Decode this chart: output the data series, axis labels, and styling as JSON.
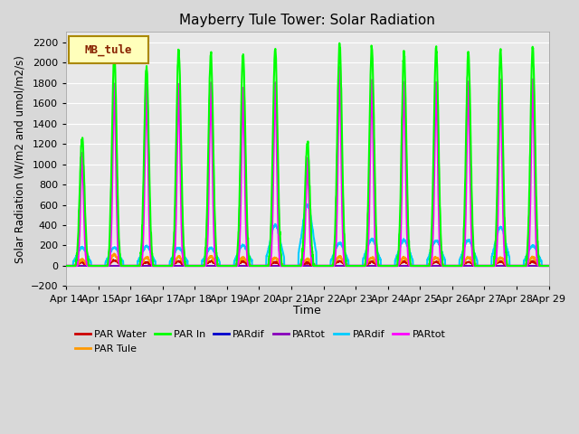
{
  "title": "Mayberry Tule Tower: Solar Radiation",
  "ylabel": "Solar Radiation (W/m2 and umol/m2/s)",
  "xlabel": "Time",
  "ylim": [
    -200,
    2300
  ],
  "yticks": [
    -200,
    0,
    200,
    400,
    600,
    800,
    1000,
    1200,
    1400,
    1600,
    1800,
    2000,
    2200
  ],
  "bg_color": "#d8d8d8",
  "plot_bg": "#e8e8e8",
  "legend_label": "MB_tule",
  "series": {
    "PAR Water": {
      "color": "#cc0000",
      "lw": 1.2
    },
    "PAR Tule": {
      "color": "#ff9900",
      "lw": 1.5
    },
    "PAR In": {
      "color": "#00ff00",
      "lw": 1.5
    },
    "PARdif_blue": {
      "color": "#0000cc",
      "lw": 1.2
    },
    "PARtot_purple": {
      "color": "#8800bb",
      "lw": 1.2
    },
    "PARdif_cyan": {
      "color": "#00ccff",
      "lw": 1.5
    },
    "PARtot_magenta": {
      "color": "#ff00ff",
      "lw": 1.8
    }
  },
  "x_tick_labels": [
    "Apr 14",
    "Apr 15",
    "Apr 16",
    "Apr 17",
    "Apr 18",
    "Apr 19",
    "Apr 20",
    "Apr 21",
    "Apr 22",
    "Apr 23",
    "Apr 24",
    "Apr 25",
    "Apr 26",
    "Apr 27",
    "Apr 28",
    "Apr 29"
  ],
  "par_in_peaks": [
    1260,
    2080,
    1960,
    2110,
    2080,
    2080,
    2130,
    1220,
    2190,
    2150,
    2100,
    2150,
    2100,
    2120,
    2130
  ],
  "par_mag_peaks": [
    1100,
    1800,
    1800,
    1780,
    1800,
    1750,
    1800,
    1050,
    1940,
    1820,
    1810,
    1800,
    1810,
    1820,
    1830
  ],
  "par_tule_peaks": [
    60,
    110,
    80,
    90,
    90,
    80,
    80,
    65,
    90,
    80,
    80,
    80,
    80,
    80,
    85
  ],
  "par_water_peaks": [
    35,
    55,
    35,
    45,
    45,
    40,
    35,
    30,
    45,
    40,
    40,
    40,
    40,
    40,
    42
  ],
  "par_cyan_peaks": [
    180,
    180,
    190,
    175,
    175,
    200,
    400,
    600,
    220,
    260,
    250,
    250,
    250,
    380,
    200
  ],
  "n_days": 15,
  "pts_per_day": 144
}
